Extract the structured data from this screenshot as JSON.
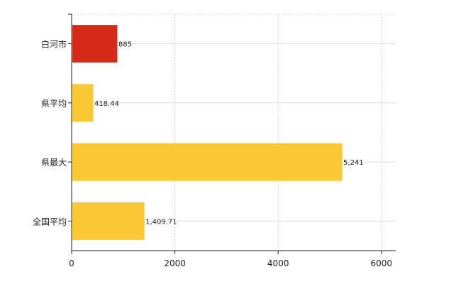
{
  "chart_data": {
    "type": "bar",
    "orientation": "horizontal",
    "title": "",
    "xlabel": "",
    "ylabel": "",
    "categories": [
      "白河市",
      "県平均",
      "県最大",
      "全国平均"
    ],
    "values": [
      885,
      418.44,
      5241,
      1409.71
    ],
    "value_labels": [
      "885",
      "418.44",
      "5,241",
      "1,409.71"
    ],
    "bar_colors": [
      "#d42a17",
      "#f9c833",
      "#f9c833",
      "#f9c833"
    ],
    "xlim": [
      0,
      6300
    ],
    "x_ticks": [
      0,
      2000,
      4000,
      6000
    ],
    "x_tick_labels": [
      "0",
      "2000",
      "4000",
      "6000"
    ],
    "grid": true,
    "legend": "none"
  }
}
